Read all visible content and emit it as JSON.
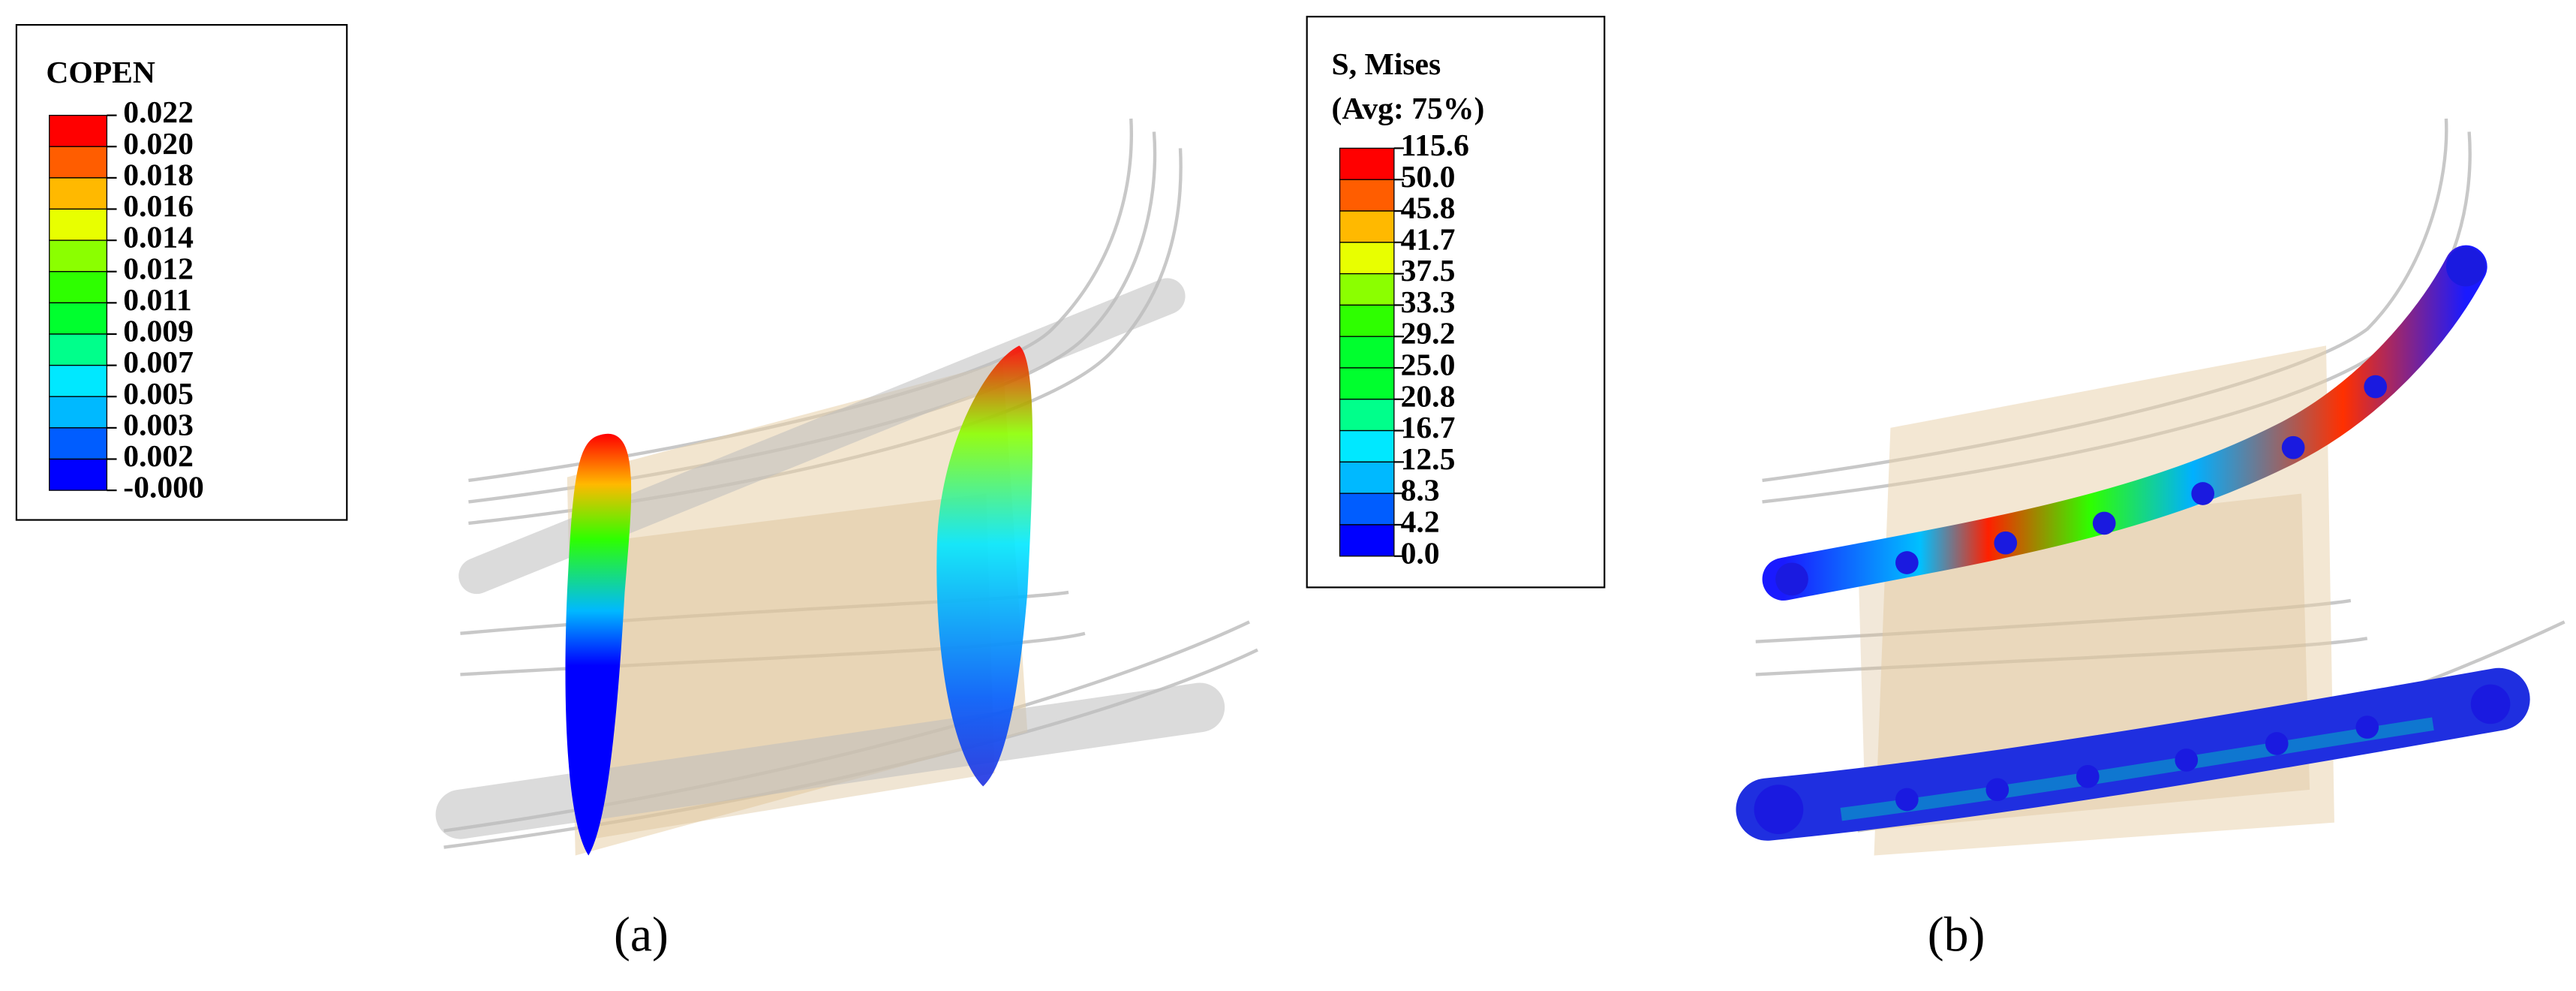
{
  "panels": [
    {
      "legend": {
        "title": [
          "COPEN"
        ],
        "labels": [
          "0.022",
          "0.020",
          "0.018",
          "0.016",
          "0.014",
          "0.012",
          "0.011",
          "0.009",
          "0.007",
          "0.005",
          "0.003",
          "0.002",
          "-0.000"
        ]
      },
      "caption": "(a)"
    },
    {
      "legend": {
        "title": [
          "S, Mises",
          "(Avg: 75%)"
        ],
        "labels": [
          "115.6",
          "50.0",
          "45.8",
          "41.7",
          "37.5",
          "33.3",
          "29.2",
          "25.0",
          "20.8",
          "16.7",
          "12.5",
          "8.3",
          "4.2",
          "0.0"
        ]
      },
      "caption": "(b)"
    }
  ]
}
